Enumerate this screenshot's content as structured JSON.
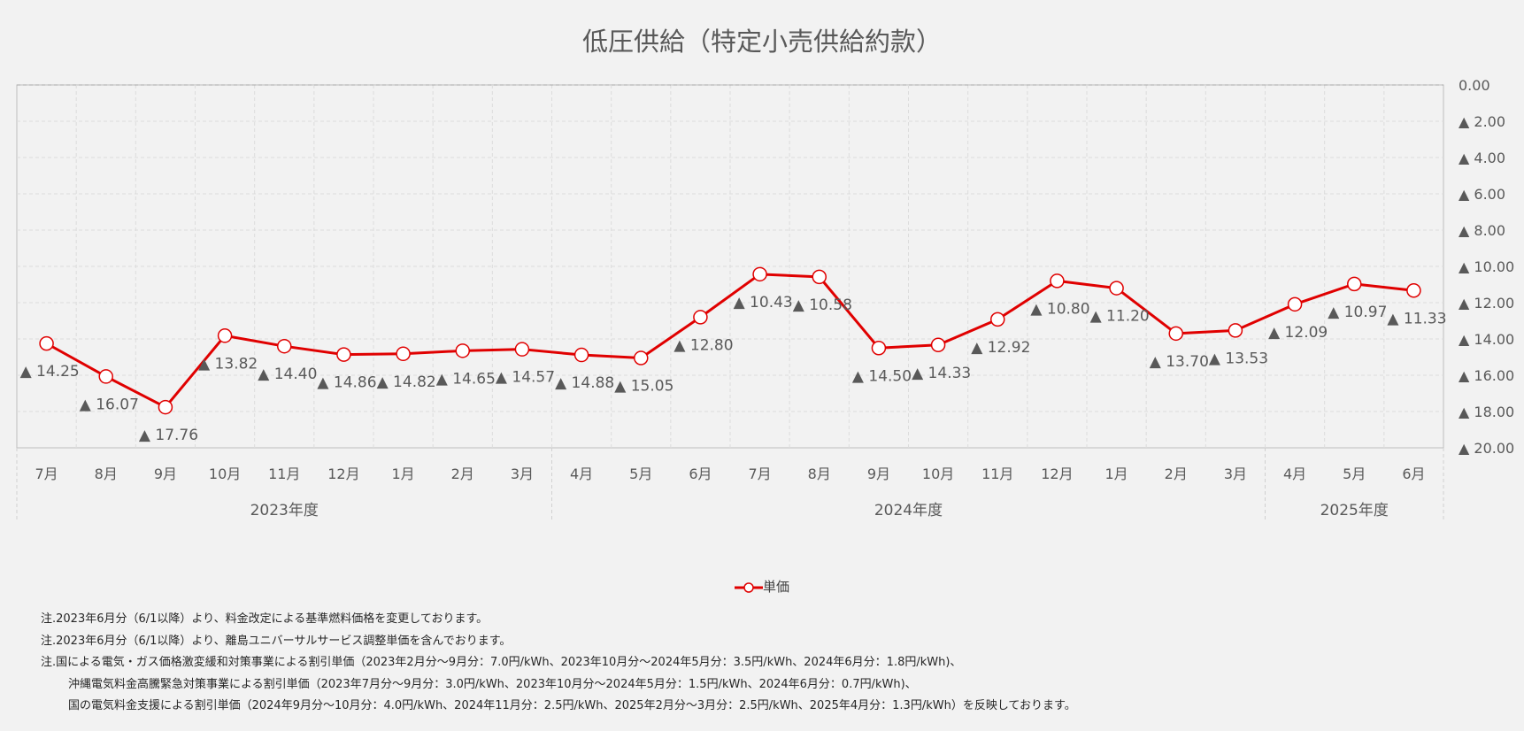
{
  "chart_data": {
    "type": "line",
    "title": "低圧供給（特定小売供給約款）",
    "categories": [
      "7月",
      "8月",
      "9月",
      "10月",
      "11月",
      "12月",
      "1月",
      "2月",
      "3月",
      "4月",
      "5月",
      "6月",
      "7月",
      "8月",
      "9月",
      "10月",
      "11月",
      "12月",
      "1月",
      "2月",
      "3月",
      "4月",
      "5月",
      "6月"
    ],
    "groups": [
      {
        "label": "2023年度",
        "start": 0,
        "end": 8
      },
      {
        "label": "2024年度",
        "start": 9,
        "end": 20
      },
      {
        "label": "2025年度",
        "start": 21,
        "end": 23
      }
    ],
    "series": [
      {
        "name": "単価",
        "values": [
          -14.25,
          -16.07,
          -17.76,
          -13.82,
          -14.4,
          -14.86,
          -14.82,
          -14.65,
          -14.57,
          -14.88,
          -15.05,
          -12.8,
          -10.43,
          -10.58,
          -14.5,
          -14.33,
          -12.92,
          -10.8,
          -11.2,
          -13.7,
          -13.53,
          -12.09,
          -10.97,
          -11.33
        ],
        "labels": [
          "▲ 14.25",
          "▲ 16.07",
          "▲ 17.76",
          "▲ 13.82",
          "▲ 14.40",
          "▲ 14.86",
          "▲ 14.82",
          "▲ 14.65",
          "▲ 14.57",
          "▲ 14.88",
          "▲ 15.05",
          "▲ 12.80",
          "▲ 10.43",
          "▲ 10.58",
          "▲ 14.50",
          "▲ 14.33",
          "▲ 12.92",
          "▲ 10.80",
          "▲ 11.20",
          "▲ 13.70",
          "▲ 13.53",
          "▲ 12.09",
          "▲ 10.97",
          "▲ 11.33"
        ],
        "color": "#e00000"
      }
    ],
    "ylim": [
      -20,
      0
    ],
    "yticks": [
      0,
      -2,
      -4,
      -6,
      -8,
      -10,
      -12,
      -14,
      -16,
      -18,
      -20
    ],
    "ytick_labels": [
      "0.00",
      "▲ 2.00",
      "▲ 4.00",
      "▲ 6.00",
      "▲ 8.00",
      "▲ 10.00",
      "▲ 12.00",
      "▲ 14.00",
      "▲ 16.00",
      "▲ 18.00",
      "▲ 20.00"
    ],
    "yaxis_position": "right",
    "grid": true,
    "legend_position": "bottom"
  },
  "notes": [
    "注.2023年6月分（6/1以降）より、料金改定による基準燃料価格を変更しております。",
    "注.2023年6月分（6/1以降）より、離島ユニバーサルサービス調整単価を含んでおります。",
    "注.国による電気・ガス価格激変緩和対策事業による割引単価（2023年2月分～9月分：7.0円/kWh、2023年10月分～2024年5月分：3.5円/kWh、2024年6月分：1.8円/kWh)、",
    "沖縄電気料金高騰緊急対策事業による割引単価（2023年7月分～9月分：3.0円/kWh、2023年10月分～2024年5月分：1.5円/kWh、2024年6月分：0.7円/kWh)、",
    "国の電気料金支援による割引単価（2024年9月分～10月分：4.0円/kWh、2024年11月分：2.5円/kWh、2025年2月分～3月分：2.5円/kWh、2025年4月分：1.3円/kWh）を反映しております。"
  ]
}
